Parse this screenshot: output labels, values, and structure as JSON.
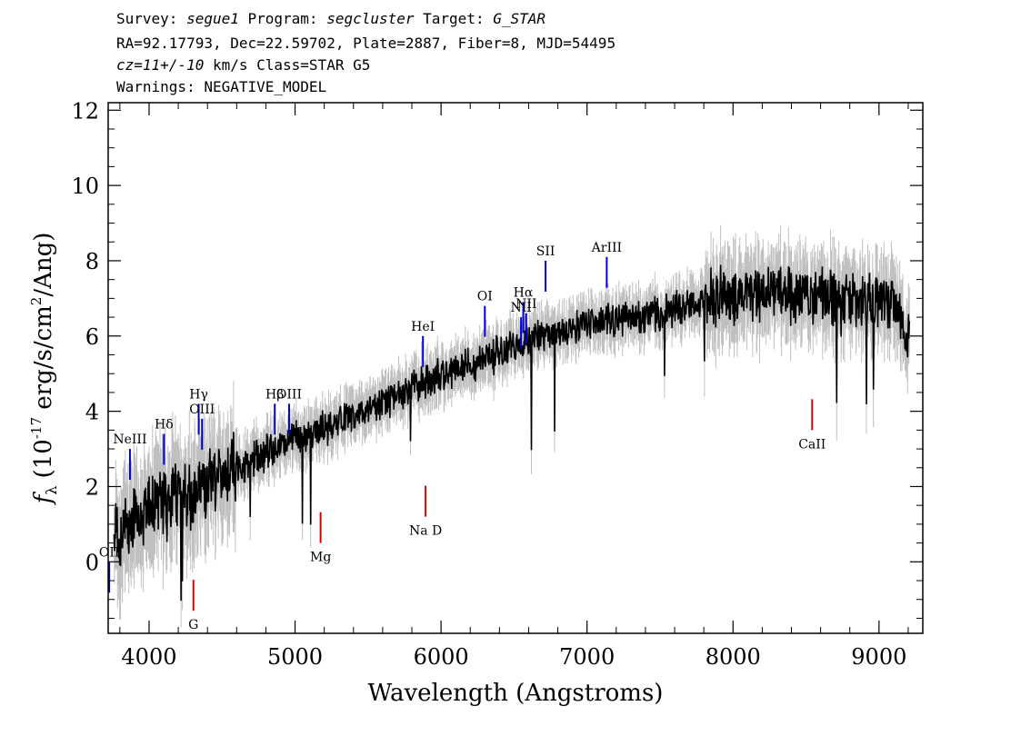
{
  "header": {
    "line1": {
      "survey_label": "Survey: ",
      "survey": "segue1",
      "program_label": " Program: ",
      "program": "segcluster",
      "target_label": " Target: ",
      "target": "G_STAR"
    },
    "line2": "RA=92.17793, Dec=22.59702, Plate=2887, Fiber=8, MJD=54495",
    "line3": {
      "cz": "cz=11+/-10",
      "rest": " km/s Class=STAR G5"
    },
    "line4": "Warnings: NEGATIVE_MODEL"
  },
  "chart_data": {
    "type": "line",
    "xlabel": "Wavelength (Angstroms)",
    "ylabel": {
      "f": "f",
      "sub": "λ",
      "pre": " (10",
      "exp1": "-17",
      "mid": " erg/s/cm",
      "exp2": "2",
      "post": "/Ang)"
    },
    "xlim": [
      3720,
      9300
    ],
    "ylim": [
      -1.9,
      12.2
    ],
    "x_ticks": [
      4000,
      5000,
      6000,
      7000,
      8000,
      9000
    ],
    "x_tick_labels": [
      "4000",
      "5000",
      "6000",
      "7000",
      "8000",
      "9000"
    ],
    "y_ticks": [
      0,
      2,
      4,
      6,
      8,
      10,
      12
    ],
    "y_tick_labels": [
      "0",
      "2",
      "4",
      "6",
      "8",
      "10",
      "12"
    ],
    "colors": {
      "flux": "#000000",
      "error": "#c0c0c0",
      "emission": "#0000cc",
      "absorption": "#dd0000"
    },
    "continuum": {
      "x": [
        3740,
        3850,
        3950,
        4100,
        4300,
        4500,
        4700,
        4900,
        5100,
        5300,
        5500,
        5700,
        5900,
        6100,
        6300,
        6500,
        6700,
        6900,
        7100,
        7300,
        7500,
        7700,
        7900,
        8100,
        8300,
        8500,
        8700,
        8900,
        9100,
        9200
      ],
      "y": [
        0.6,
        1.0,
        1.3,
        1.6,
        1.9,
        2.3,
        2.7,
        3.1,
        3.4,
        3.7,
        4.0,
        4.4,
        4.8,
        5.1,
        5.4,
        5.7,
        6.0,
        6.2,
        6.4,
        6.5,
        6.6,
        6.8,
        7.0,
        7.1,
        7.2,
        7.1,
        7.0,
        6.9,
        6.9,
        6.0
      ]
    },
    "emission_lines": [
      {
        "label": "OII",
        "x": 3727,
        "y": 0
      },
      {
        "label": "NeIII",
        "x": 3869,
        "y": 3
      },
      {
        "label": "Hδ",
        "x": 4102,
        "y": 3.4
      },
      {
        "label": "Hγ",
        "x": 4340,
        "y": 4.2
      },
      {
        "label": "OIII",
        "x": 4363,
        "y": 3.8
      },
      {
        "label": "Hβ",
        "x": 4861,
        "y": 4.2
      },
      {
        "label": "OIII",
        "x": 4959,
        "y": 4.2
      },
      {
        "label": "HeI",
        "x": 5876,
        "y": 6
      },
      {
        "label": "OI",
        "x": 6300,
        "y": 6.8
      },
      {
        "label": "NII",
        "x": 6548,
        "y": 6.5
      },
      {
        "label": "Hα",
        "x": 6563,
        "y": 6.9
      },
      {
        "label": "NII",
        "x": 6583,
        "y": 6.6
      },
      {
        "label": "SII",
        "x": 6716,
        "y": 8
      },
      {
        "label": "ArIII",
        "x": 7135,
        "y": 8.1
      }
    ],
    "absorption_lines": [
      {
        "label": "G",
        "x": 4304,
        "y": -1.3
      },
      {
        "label": "Mg",
        "x": 5175,
        "y": 0.5
      },
      {
        "label": "Na D",
        "x": 5894,
        "y": 1.2
      },
      {
        "label": "CaII",
        "x": 8542,
        "y": 3.5
      }
    ]
  }
}
